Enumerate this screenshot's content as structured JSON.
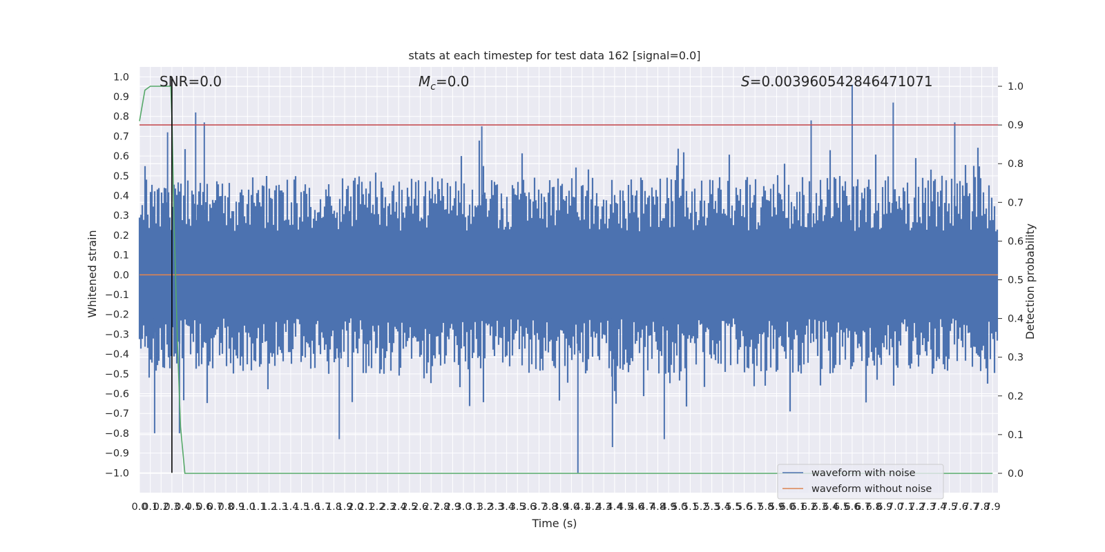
{
  "chart_data": {
    "type": "line",
    "title": "stats at each timestep for test data 162 [signal=0.0]",
    "xlabel": "Time (s)",
    "ylabel": "Whitened strain",
    "y2label": "Detection probability",
    "xlim": [
      0.0,
      7.95
    ],
    "ylim": [
      -1.1,
      1.05
    ],
    "y2lim": [
      -0.05,
      1.05
    ],
    "x_ticks": [
      "0.0",
      "0.1",
      "0.2",
      "0.3",
      "0.4",
      "0.5",
      "0.6",
      "0.7",
      "0.8",
      "0.9",
      "1.0",
      "1.1",
      "1.2",
      "1.3",
      "1.4",
      "1.5",
      "1.6",
      "1.7",
      "1.8",
      "1.9",
      "2.0",
      "2.1",
      "2.2",
      "2.3",
      "2.4",
      "2.5",
      "2.6",
      "2.7",
      "2.8",
      "2.9",
      "3.0",
      "3.1",
      "3.2",
      "3.3",
      "3.4",
      "3.5",
      "3.6",
      "3.7",
      "3.8",
      "3.9",
      "4.0",
      "4.1",
      "4.2",
      "4.3",
      "4.4",
      "4.5",
      "4.6",
      "4.7",
      "4.8",
      "4.9",
      "5.0",
      "5.1",
      "5.2",
      "5.3",
      "5.4",
      "5.5",
      "5.6",
      "5.7",
      "5.8",
      "5.9",
      "6.0",
      "6.1",
      "6.2",
      "6.3",
      "6.4",
      "6.5",
      "6.6",
      "6.7",
      "6.8",
      "6.9",
      "7.0",
      "7.1",
      "7.2",
      "7.3",
      "7.4",
      "7.5",
      "7.6",
      "7.7",
      "7.8",
      "7.9"
    ],
    "y_ticks": [
      "1.0",
      "0.9",
      "0.8",
      "0.7",
      "0.6",
      "0.5",
      "0.4",
      "0.3",
      "0.2",
      "0.1",
      "0.0",
      "−0.1",
      "−0.2",
      "−0.3",
      "−0.4",
      "−0.5",
      "−0.6",
      "−0.7",
      "−0.8",
      "−0.9",
      "−1.0"
    ],
    "y2_ticks": [
      "1.0",
      "0.9",
      "0.8",
      "0.7",
      "0.6",
      "0.5",
      "0.4",
      "0.3",
      "0.2",
      "0.1",
      "0.0"
    ],
    "annotations": {
      "snr": "SNR=0.0",
      "mc_symbol": "M",
      "mc_sub": "c",
      "mc_value": "=0.0",
      "s_symbol": "S",
      "s_value": "=0.003960542846471071"
    },
    "legend": {
      "placement": "lower-right",
      "entries": [
        "waveform with noise",
        "waveform without noise"
      ]
    },
    "series": [
      {
        "name": "waveform with noise",
        "color": "#4c72b0",
        "axis": "left",
        "note_range": [
          -1.0,
          0.96
        ],
        "peaks": [
          {
            "x": 0.26,
            "y": 0.72
          },
          {
            "x": 0.52,
            "y": 0.82
          },
          {
            "x": 0.6,
            "y": 0.77
          },
          {
            "x": 3.17,
            "y": 0.75
          },
          {
            "x": 6.22,
            "y": 0.78
          },
          {
            "x": 6.6,
            "y": 0.96
          },
          {
            "x": 6.98,
            "y": 0.87
          },
          {
            "x": 7.55,
            "y": 0.77
          }
        ],
        "troughs": [
          {
            "x": 0.14,
            "y": -0.8
          },
          {
            "x": 0.37,
            "y": -0.8
          },
          {
            "x": 1.85,
            "y": -0.83
          },
          {
            "x": 4.06,
            "y": -1.0
          },
          {
            "x": 4.38,
            "y": -0.87
          },
          {
            "x": 4.86,
            "y": -0.83
          }
        ]
      },
      {
        "name": "waveform without noise",
        "color": "#dd8452",
        "axis": "left",
        "x": [
          0.0,
          7.95
        ],
        "y": [
          0.0,
          0.0
        ]
      },
      {
        "color": "#55a868",
        "axis": "right",
        "x": [
          0.0,
          0.05,
          0.1,
          0.2,
          0.29,
          0.3,
          0.32,
          0.35,
          0.38,
          0.42,
          7.9
        ],
        "y": [
          0.91,
          0.99,
          1.0,
          1.0,
          1.0,
          0.92,
          0.65,
          0.35,
          0.12,
          0.0,
          0.0
        ]
      },
      {
        "color": "#c44e52",
        "axis": "right",
        "x": [
          0.0,
          7.95
        ],
        "y": [
          0.9,
          0.9
        ]
      },
      {
        "color": "#000000",
        "axis": "left",
        "x": [
          0.3,
          0.3
        ],
        "y": [
          1.0,
          -1.0
        ]
      }
    ],
    "grid": true,
    "colors": {
      "background": "#eaeaf2",
      "grid": "#ffffff",
      "noise": "#4c72b0",
      "clean": "#dd8452",
      "probability": "#55a868",
      "threshold": "#c44e52",
      "marker": "#000000"
    }
  }
}
